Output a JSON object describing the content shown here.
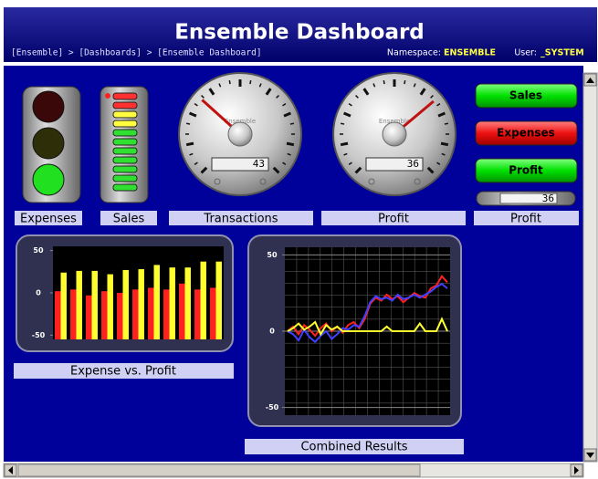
{
  "header": {
    "title": "Ensemble Dashboard",
    "breadcrumb": "[Ensemble] > [Dashboards] > [Ensemble Dashboard]",
    "namespace_label": "Namespace:",
    "namespace": "ENSEMBLE",
    "user_label": "User:",
    "user": "_SYSTEM"
  },
  "widgets": {
    "traffic_light": {
      "label": "Expenses"
    },
    "led_meter": {
      "label": "Sales"
    },
    "gauges": [
      {
        "label": "Transactions",
        "brand": "Ensemble",
        "readout": 43
      },
      {
        "label": "Profit",
        "brand": "Ensemble",
        "readout": 36
      }
    ],
    "buttons": [
      "Sales",
      "Expenses",
      "Profit"
    ],
    "odometer": {
      "label": "Profit",
      "readout": 36
    }
  },
  "chart_data": [
    {
      "type": "bar",
      "title": "Expense vs. Profit",
      "categories": [
        null,
        null,
        null,
        null,
        null,
        null,
        null,
        null,
        null,
        null,
        null
      ],
      "series": [
        {
          "color": "#ff2020",
          "values": [
            2,
            4,
            -3,
            2,
            0,
            4,
            6,
            4,
            11,
            4,
            6
          ]
        },
        {
          "color": "#ffff30",
          "values": [
            24,
            26,
            26,
            22,
            27,
            28,
            33,
            30,
            30,
            37,
            37
          ]
        }
      ],
      "ylim": [
        -55,
        55
      ],
      "yticks": [
        50,
        0,
        -50
      ],
      "grid": false
    },
    {
      "type": "line",
      "title": "Combined Results",
      "categories": [
        null,
        null,
        null,
        null,
        null,
        null,
        null,
        null,
        null,
        null,
        null,
        null,
        null,
        null,
        null,
        null,
        null,
        null,
        null,
        null,
        null,
        null,
        null,
        null,
        null,
        null,
        null,
        null,
        null,
        null
      ],
      "series": [
        {
          "color": "#ff2020",
          "values": [
            0,
            3,
            -2,
            4,
            1,
            -3,
            2,
            5,
            0,
            3,
            -1,
            4,
            6,
            2,
            8,
            18,
            22,
            20,
            24,
            21,
            23,
            19,
            22,
            25,
            23,
            22,
            28,
            30,
            36,
            32
          ]
        },
        {
          "color": "#4040ff",
          "values": [
            0,
            -2,
            -6,
            1,
            -4,
            -7,
            -3,
            0,
            -5,
            -2,
            2,
            1,
            4,
            3,
            10,
            19,
            23,
            21,
            22,
            20,
            24,
            21,
            22,
            24,
            22,
            24,
            26,
            29,
            31,
            28
          ]
        },
        {
          "color": "#ffff30",
          "values": [
            0,
            2,
            5,
            1,
            3,
            6,
            -2,
            4,
            1,
            3,
            0,
            0,
            0,
            0,
            0,
            0,
            0,
            0,
            3,
            0,
            0,
            0,
            0,
            0,
            5,
            0,
            0,
            0,
            8,
            0
          ]
        }
      ],
      "ylim": [
        -55,
        55
      ],
      "yticks": [
        50,
        0,
        -50
      ],
      "grid": true
    }
  ]
}
